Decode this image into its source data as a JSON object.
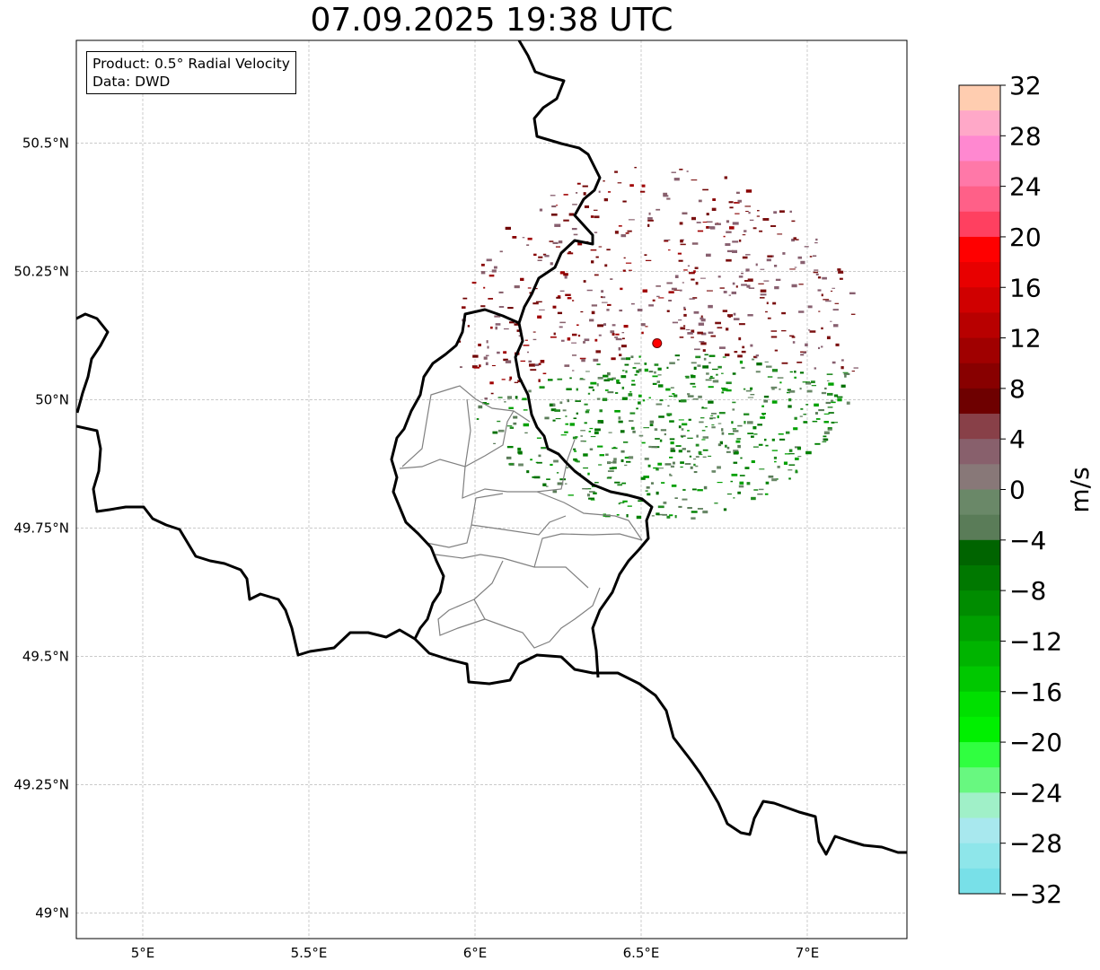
{
  "title": "07.09.2025 19:38 UTC",
  "info": {
    "product": "Product: 0.5° Radial Velocity",
    "data": "Data: DWD"
  },
  "map": {
    "lon_range": [
      4.8,
      7.3
    ],
    "lat_range": [
      48.95,
      50.7
    ],
    "lat_ticks": [
      {
        "value": 50.5,
        "label": "50.5°N"
      },
      {
        "value": 50.25,
        "label": "50.25°N"
      },
      {
        "value": 50.0,
        "label": "50°N"
      },
      {
        "value": 49.75,
        "label": "49.75°N"
      },
      {
        "value": 49.5,
        "label": "49.5°N"
      },
      {
        "value": 49.25,
        "label": "49.25°N"
      },
      {
        "value": 49.0,
        "label": "49°N"
      }
    ],
    "lon_ticks": [
      {
        "value": 5.0,
        "label": "5°E"
      },
      {
        "value": 5.5,
        "label": "5.5°E"
      },
      {
        "value": 6.0,
        "label": "6°E"
      },
      {
        "value": 6.5,
        "label": "6.5°E"
      },
      {
        "value": 7.0,
        "label": "7°E"
      }
    ],
    "radar_site": {
      "lon": 6.548,
      "lat": 50.11,
      "color": "#ff0000"
    },
    "border_color": "#000000",
    "admin_color": "#808080",
    "grid": true
  },
  "colorbar": {
    "label": "m/s",
    "min": -32,
    "max": 32,
    "tick_labels": [
      "32",
      "28",
      "24",
      "20",
      "16",
      "12",
      "8",
      "4",
      "0",
      "−4",
      "−8",
      "−12",
      "−16",
      "−20",
      "−24",
      "−28",
      "−32"
    ],
    "colors_top_to_bottom": [
      "#ffcdb0",
      "#ffa8c8",
      "#ff88d0",
      "#ff78a8",
      "#ff6088",
      "#ff4060",
      "#ff0000",
      "#e80000",
      "#d00000",
      "#b80000",
      "#a00000",
      "#880000",
      "#6e0000",
      "#884048",
      "#88606c",
      "#887878",
      "#6a8868",
      "#5a7c58",
      "#006400",
      "#007800",
      "#008c00",
      "#00a000",
      "#00b400",
      "#00c800",
      "#00e000",
      "#00f000",
      "#30ff40",
      "#68f880",
      "#a0f0c8",
      "#a8e8ee",
      "#8ee6ea",
      "#78e0e8"
    ]
  }
}
